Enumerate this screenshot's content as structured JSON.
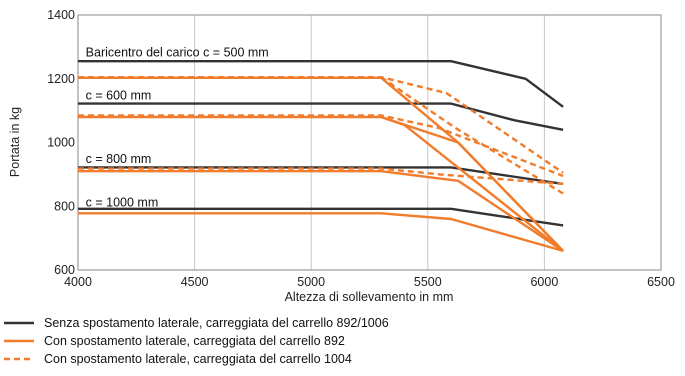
{
  "chart_data": {
    "type": "line",
    "xlabel": "Altezza di sollevamento in mm",
    "ylabel": "Portata in kg",
    "xlim": [
      4000,
      6500
    ],
    "ylim": [
      600,
      1400
    ],
    "xticks": [
      4000,
      4500,
      5000,
      5500,
      6000,
      6500
    ],
    "yticks": [
      600,
      800,
      1000,
      1200,
      1400
    ],
    "grid": "vertical",
    "colors": {
      "black": "#333333",
      "orange": "#f07c2c"
    },
    "annotations": [
      {
        "text": "Baricentro del carico c = 500 mm",
        "x": 4020,
        "y": 1270
      },
      {
        "text": "c = 600 mm",
        "x": 4020,
        "y": 1135
      },
      {
        "text": "c = 800 mm",
        "x": 4020,
        "y": 935
      },
      {
        "text": "c = 1000 mm",
        "x": 4020,
        "y": 800
      }
    ],
    "series": [
      {
        "name": "Senza  spostamento laterale, carreggiata del carrello 892/1006",
        "color": "black",
        "style": "solid",
        "lines": [
          [
            [
              4000,
              1255
            ],
            [
              5600,
              1255
            ],
            [
              5920,
              1200
            ],
            [
              6080,
              1112
            ]
          ],
          [
            [
              4000,
              1122
            ],
            [
              5600,
              1122
            ],
            [
              5870,
              1070
            ],
            [
              6080,
              1040
            ]
          ],
          [
            [
              4000,
              922
            ],
            [
              5600,
              922
            ],
            [
              5850,
              895
            ],
            [
              6080,
              870
            ]
          ],
          [
            [
              4000,
              792
            ],
            [
              5600,
              792
            ],
            [
              5800,
              770
            ],
            [
              6080,
              740
            ]
          ]
        ]
      },
      {
        "name": "Con spostamento laterale, carreggiata del carrello 892",
        "color": "orange",
        "style": "solid",
        "lines": [
          [
            [
              4000,
              1203
            ],
            [
              5300,
              1203
            ],
            [
              5630,
              1000
            ],
            [
              6080,
              660
            ]
          ],
          [
            [
              4000,
              1080
            ],
            [
              5300,
              1080
            ],
            [
              5630,
              1000
            ],
            [
              6080,
              660
            ]
          ],
          [
            [
              4000,
              910
            ],
            [
              5300,
              910
            ],
            [
              5630,
              880
            ],
            [
              6080,
              660
            ]
          ],
          [
            [
              4000,
              778
            ],
            [
              5300,
              778
            ],
            [
              5600,
              760
            ],
            [
              6080,
              660
            ]
          ],
          [
            [
              5300,
              1080
            ],
            [
              5400,
              1055
            ],
            [
              6080,
              660
            ]
          ]
        ]
      },
      {
        "name": "Con spostamento laterale, carreggiata del carrello 1004",
        "color": "orange",
        "style": "dashed",
        "lines": [
          [
            [
              4000,
              1205
            ],
            [
              5300,
              1205
            ],
            [
              5580,
              1155
            ],
            [
              6080,
              905
            ]
          ],
          [
            [
              4000,
              1085
            ],
            [
              5300,
              1085
            ],
            [
              5550,
              1045
            ],
            [
              6080,
              895
            ]
          ],
          [
            [
              4000,
              918
            ],
            [
              5300,
              918
            ],
            [
              5550,
              900
            ],
            [
              6080,
              870
            ]
          ],
          [
            [
              5300,
              1205
            ],
            [
              5620,
              1045
            ],
            [
              6080,
              840
            ]
          ]
        ]
      }
    ],
    "legend": {
      "position": "bottom-left",
      "entries": [
        {
          "label": "Senza  spostamento laterale, carreggiata del carrello 892/1006",
          "color": "black",
          "style": "solid"
        },
        {
          "label": "Con spostamento laterale, carreggiata del carrello 892",
          "color": "orange",
          "style": "solid"
        },
        {
          "label": "Con spostamento laterale, carreggiata del carrello 1004",
          "color": "orange",
          "style": "dashed"
        }
      ]
    }
  }
}
